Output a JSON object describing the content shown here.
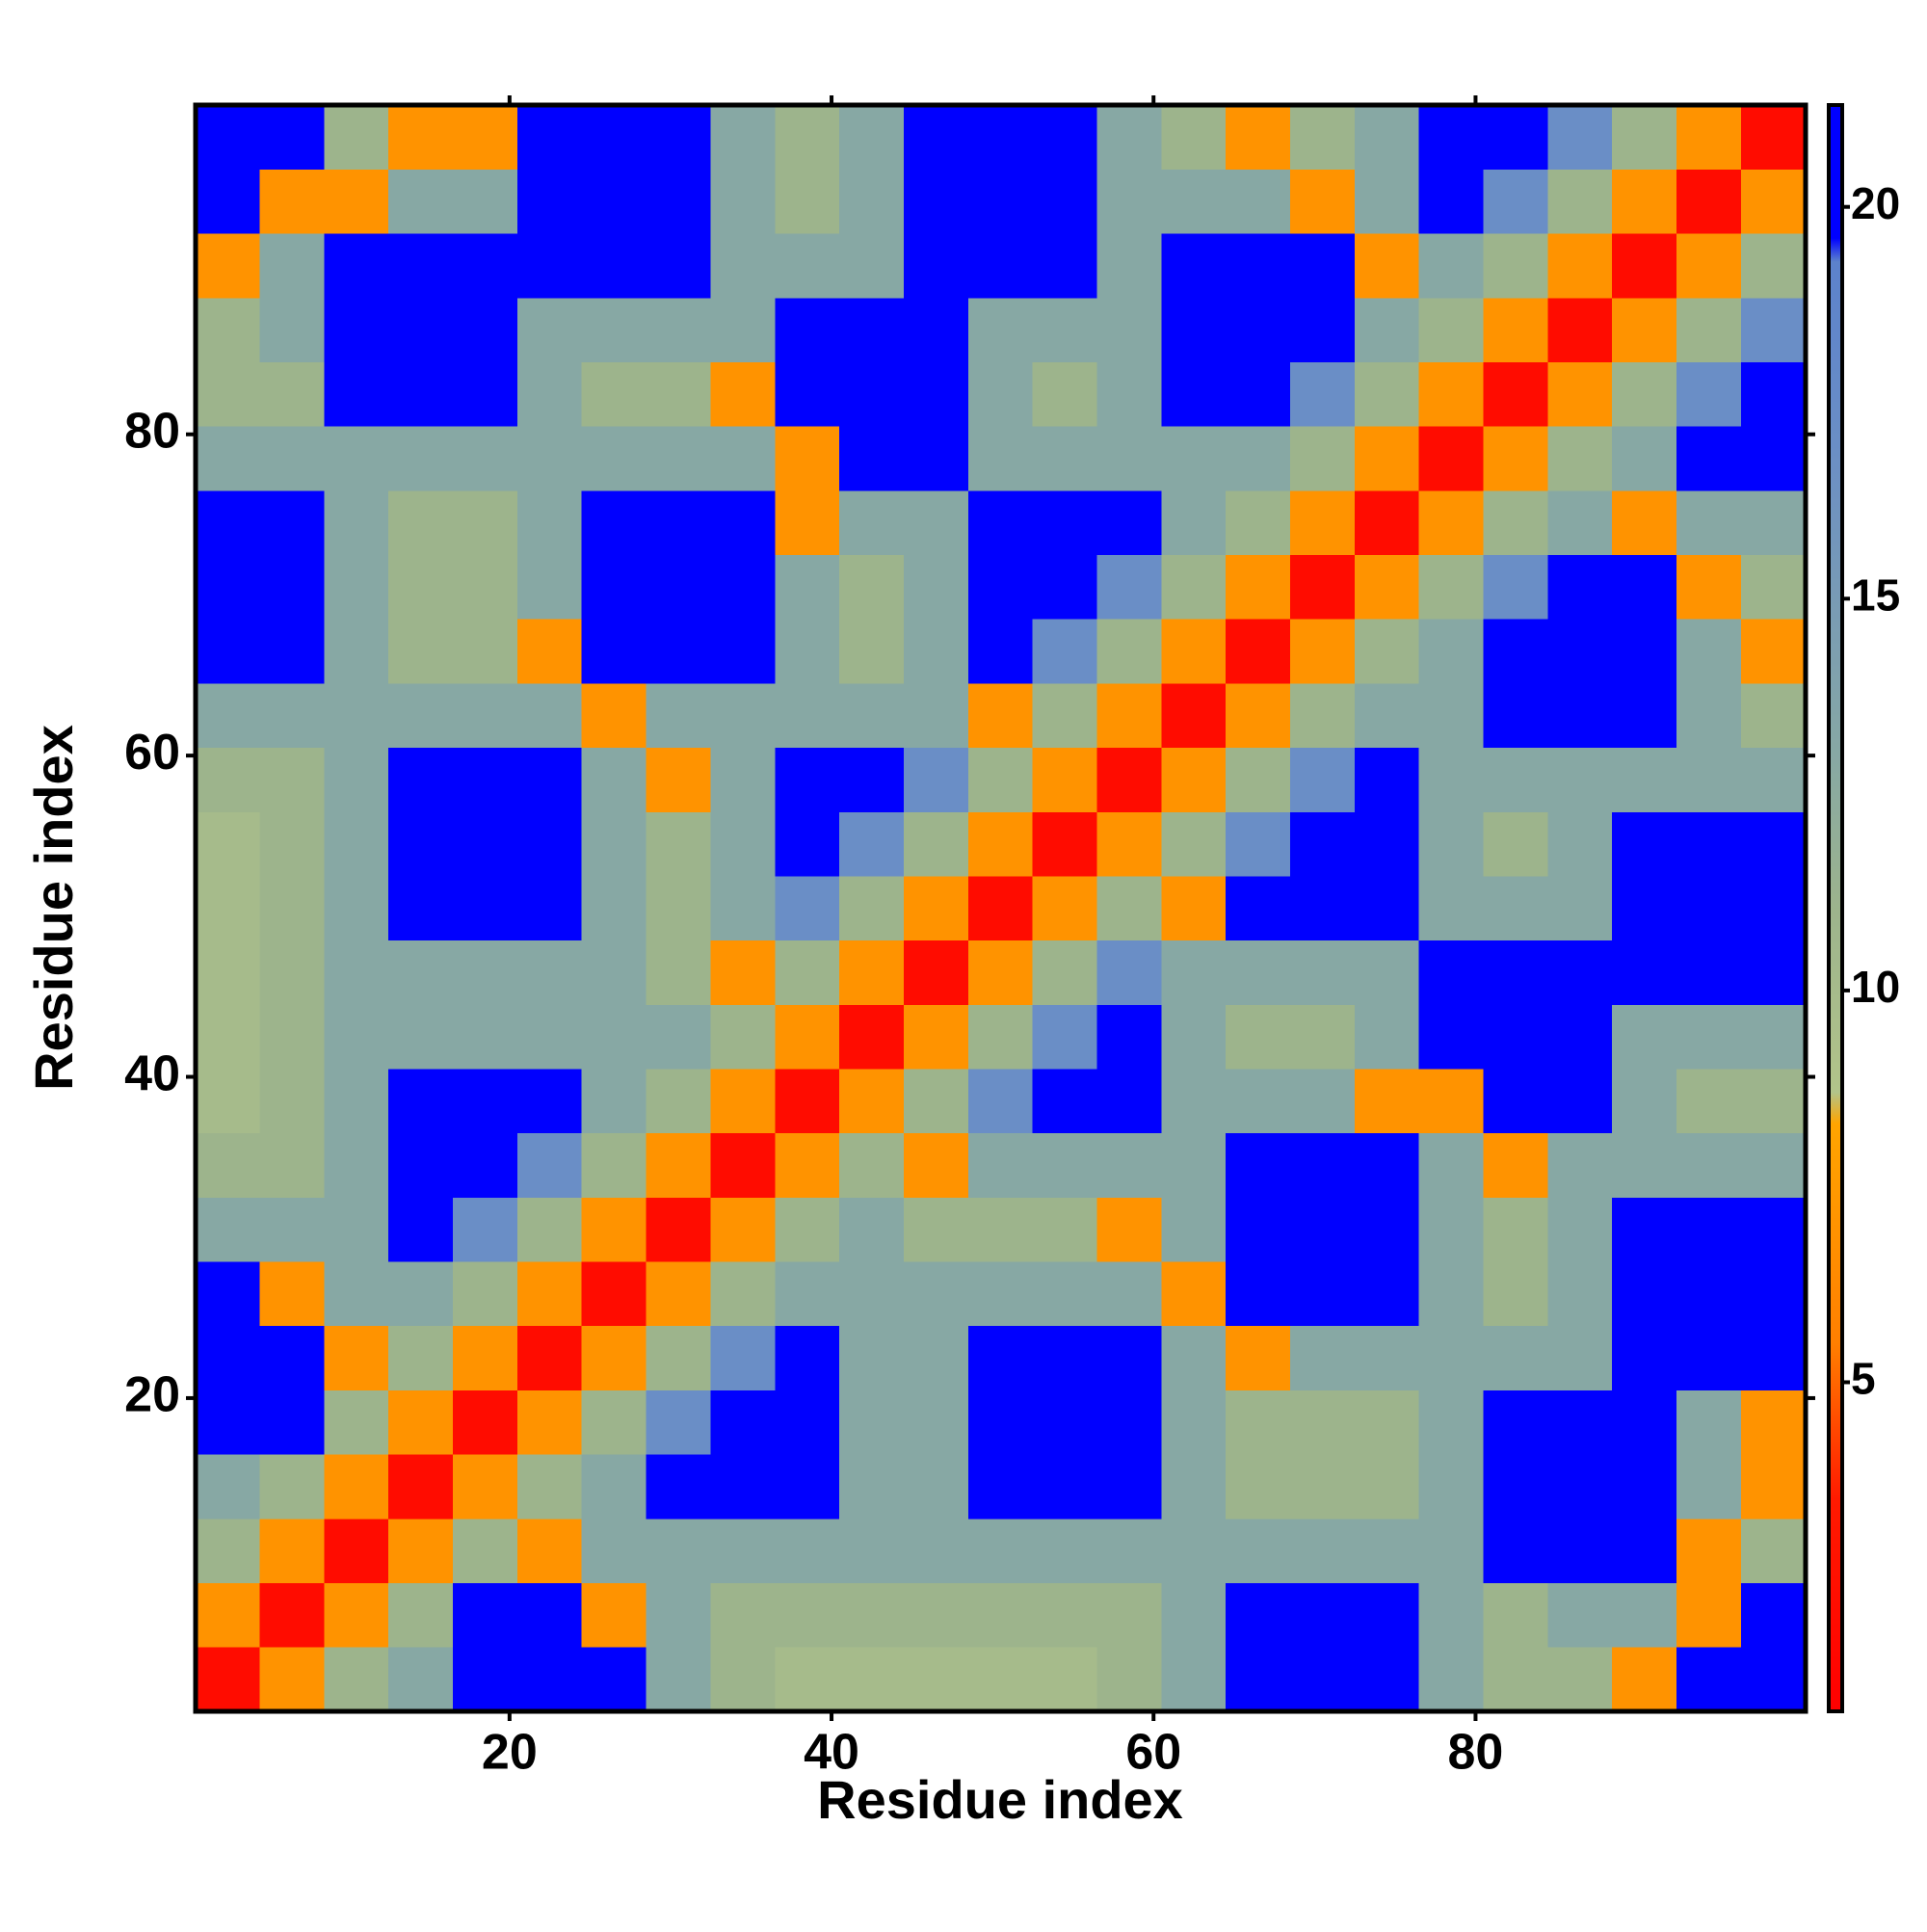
{
  "chart_data": {
    "type": "heatmap",
    "xlabel": "Residue index",
    "ylabel": "Residue index",
    "x": [
      2.5,
      6.5,
      10.5,
      14.5,
      18.5,
      22.5,
      26.5,
      30.5,
      34.5,
      38.5,
      42.5,
      46.5,
      50.5,
      54.5,
      58.5,
      62.5,
      66.5,
      70.5,
      74.5,
      78.5,
      82.5,
      86.5,
      90.5,
      94.5,
      98.5
    ],
    "y": [
      2.5,
      6.5,
      10.5,
      14.5,
      18.5,
      22.5,
      26.5,
      30.5,
      34.5,
      38.5,
      42.5,
      46.5,
      50.5,
      54.5,
      58.5,
      62.5,
      66.5,
      70.5,
      74.5,
      78.5,
      82.5,
      86.5,
      90.5,
      94.5,
      98.5
    ],
    "z": [
      [
        2,
        7,
        11,
        13,
        20,
        21,
        20,
        13,
        11,
        10,
        10,
        10,
        10,
        10,
        11,
        13,
        20,
        21,
        20,
        13,
        11,
        11,
        7,
        20,
        21
      ],
      [
        7,
        2,
        7,
        11,
        20,
        20,
        7,
        13,
        11,
        11,
        11,
        11,
        11,
        11,
        11,
        13,
        20,
        20,
        20,
        13,
        11,
        13,
        13,
        7,
        20
      ],
      [
        11,
        7,
        2,
        7,
        11,
        7,
        13,
        13,
        13,
        13,
        13,
        13,
        13,
        13,
        13,
        13,
        13,
        13,
        13,
        13,
        20,
        20,
        20,
        7,
        11
      ],
      [
        13,
        11,
        7,
        2,
        7,
        11,
        13,
        20,
        20,
        20,
        13,
        13,
        20,
        20,
        20,
        13,
        11,
        11,
        11,
        13,
        20,
        21,
        20,
        13,
        7
      ],
      [
        20,
        20,
        11,
        7,
        2,
        7,
        11,
        17,
        21,
        20,
        13,
        13,
        20,
        21,
        20,
        13,
        11,
        11,
        11,
        13,
        20,
        20,
        20,
        13,
        7
      ],
      [
        21,
        20,
        7,
        11,
        7,
        2,
        7,
        11,
        17,
        20,
        13,
        13,
        20,
        20,
        20,
        13,
        7,
        13,
        13,
        13,
        13,
        13,
        20,
        20,
        20
      ],
      [
        20,
        7,
        13,
        13,
        11,
        7,
        2,
        7,
        11,
        13,
        13,
        13,
        13,
        13,
        13,
        7,
        20,
        20,
        20,
        13,
        11,
        13,
        20,
        21,
        20
      ],
      [
        13,
        13,
        13,
        20,
        17,
        11,
        7,
        2,
        7,
        11,
        13,
        11,
        11,
        11,
        7,
        13,
        20,
        21,
        20,
        13,
        11,
        13,
        20,
        20,
        20
      ],
      [
        11,
        11,
        13,
        20,
        21,
        17,
        11,
        7,
        2,
        7,
        11,
        7,
        13,
        13,
        13,
        13,
        20,
        20,
        20,
        13,
        7,
        13,
        13,
        13,
        13
      ],
      [
        10,
        11,
        13,
        20,
        20,
        20,
        13,
        11,
        7,
        2,
        7,
        11,
        17,
        20,
        20,
        13,
        13,
        13,
        7,
        7,
        20,
        20,
        13,
        11,
        11
      ],
      [
        10,
        11,
        13,
        13,
        13,
        13,
        13,
        13,
        11,
        7,
        2,
        7,
        11,
        17,
        20,
        13,
        11,
        11,
        13,
        20,
        21,
        20,
        13,
        13,
        13
      ],
      [
        10,
        11,
        13,
        13,
        13,
        13,
        13,
        11,
        7,
        11,
        7,
        2,
        7,
        11,
        17,
        13,
        13,
        13,
        13,
        20,
        20,
        20,
        20,
        20,
        20
      ],
      [
        10,
        11,
        13,
        20,
        20,
        20,
        13,
        11,
        13,
        17,
        11,
        7,
        2,
        7,
        11,
        7,
        20,
        20,
        20,
        13,
        13,
        13,
        20,
        21,
        20
      ],
      [
        10,
        11,
        13,
        20,
        21,
        20,
        13,
        11,
        13,
        20,
        17,
        11,
        7,
        2,
        7,
        11,
        17,
        21,
        20,
        13,
        11,
        13,
        20,
        20,
        20
      ],
      [
        11,
        11,
        13,
        20,
        20,
        20,
        13,
        7,
        13,
        20,
        20,
        17,
        11,
        7,
        2,
        7,
        11,
        17,
        20,
        13,
        13,
        13,
        13,
        13,
        13
      ],
      [
        13,
        13,
        13,
        13,
        13,
        13,
        7,
        13,
        13,
        13,
        13,
        13,
        7,
        11,
        7,
        2,
        7,
        11,
        13,
        13,
        20,
        20,
        20,
        13,
        11
      ],
      [
        20,
        20,
        13,
        11,
        11,
        7,
        20,
        20,
        20,
        13,
        11,
        13,
        20,
        17,
        11,
        7,
        2,
        7,
        11,
        13,
        20,
        21,
        20,
        13,
        7
      ],
      [
        21,
        20,
        13,
        11,
        11,
        13,
        20,
        21,
        20,
        13,
        11,
        13,
        20,
        21,
        17,
        11,
        7,
        2,
        7,
        11,
        17,
        20,
        20,
        7,
        11
      ],
      [
        20,
        20,
        13,
        11,
        11,
        13,
        20,
        20,
        20,
        7,
        13,
        13,
        20,
        20,
        20,
        13,
        11,
        7,
        2,
        7,
        11,
        13,
        7,
        13,
        13
      ],
      [
        13,
        13,
        13,
        13,
        13,
        13,
        13,
        13,
        13,
        7,
        20,
        20,
        13,
        13,
        13,
        13,
        13,
        11,
        7,
        2,
        7,
        11,
        13,
        20,
        20
      ],
      [
        11,
        11,
        20,
        20,
        20,
        13,
        11,
        11,
        7,
        20,
        21,
        20,
        13,
        11,
        13,
        20,
        20,
        17,
        11,
        7,
        2,
        7,
        11,
        17,
        21
      ],
      [
        11,
        13,
        20,
        21,
        20,
        13,
        13,
        13,
        13,
        20,
        20,
        20,
        13,
        13,
        13,
        20,
        21,
        20,
        13,
        11,
        7,
        2,
        7,
        11,
        17
      ],
      [
        7,
        13,
        20,
        20,
        20,
        20,
        20,
        20,
        13,
        13,
        13,
        20,
        20,
        20,
        13,
        20,
        20,
        20,
        7,
        13,
        11,
        7,
        2,
        7,
        11
      ],
      [
        20,
        7,
        7,
        13,
        13,
        20,
        21,
        20,
        13,
        11,
        13,
        20,
        21,
        20,
        13,
        13,
        13,
        7,
        13,
        20,
        17,
        11,
        7,
        2,
        7
      ],
      [
        21,
        20,
        11,
        7,
        7,
        20,
        20,
        20,
        13,
        11,
        13,
        20,
        20,
        20,
        13,
        11,
        7,
        11,
        13,
        20,
        21,
        17,
        11,
        7,
        2
      ]
    ],
    "xlim": [
      0.5,
      100.5
    ],
    "ylim": [
      0.5,
      100.5
    ],
    "xticks": [
      20,
      40,
      60,
      80
    ],
    "yticks": [
      20,
      40,
      60,
      80
    ],
    "clim": [
      0.8,
      21.3
    ],
    "cticks": [
      5,
      10,
      15,
      20
    ],
    "colorscale": [
      {
        "value": 0.8,
        "color": "#ff0000"
      },
      {
        "value": 3.5,
        "color": "#ff1a00"
      },
      {
        "value": 5.5,
        "color": "#ff7f00"
      },
      {
        "value": 8.3,
        "color": "#ffa500"
      },
      {
        "value": 8.7,
        "color": "#b2c48a"
      },
      {
        "value": 11,
        "color": "#9db48c"
      },
      {
        "value": 13,
        "color": "#87a8a4"
      },
      {
        "value": 17,
        "color": "#6a8ec6"
      },
      {
        "value": 19.3,
        "color": "#5c82cc"
      },
      {
        "value": 19.6,
        "color": "#0000ff"
      },
      {
        "value": 21.3,
        "color": "#0000ff"
      }
    ]
  }
}
